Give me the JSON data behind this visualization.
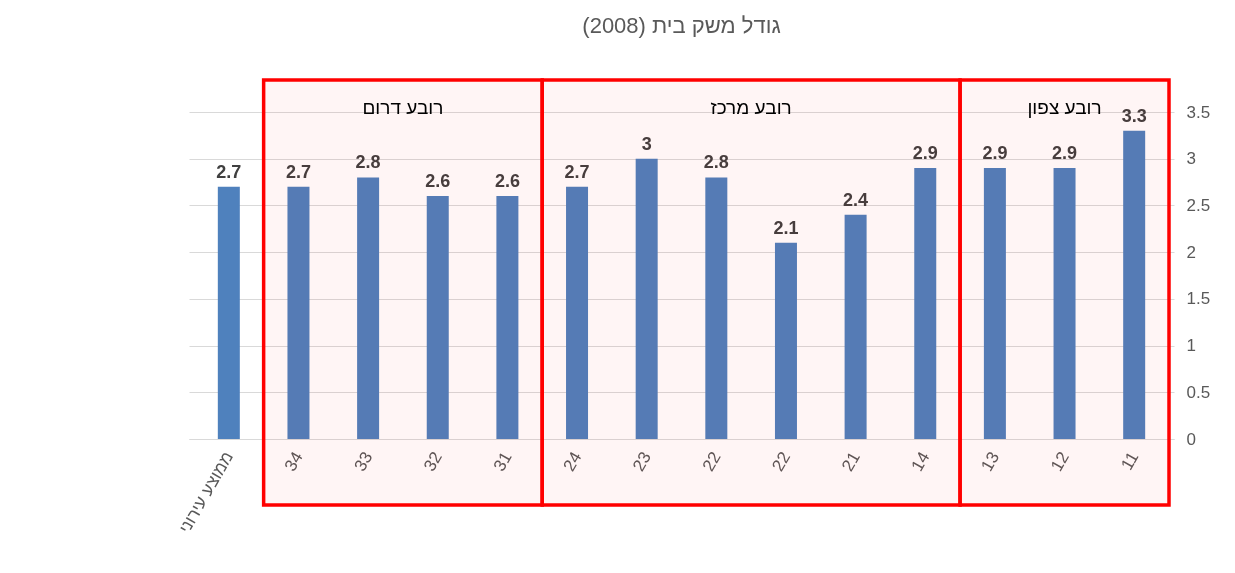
{
  "chart_data": {
    "type": "bar",
    "title": "גודל משק בית (2008)",
    "categories": [
      "ממוצע עירוני",
      "34",
      "33",
      "32",
      "31",
      "24",
      "23",
      "22",
      "22",
      "21",
      "14",
      "13",
      "12",
      "11"
    ],
    "values": [
      2.7,
      2.7,
      2.8,
      2.6,
      2.6,
      2.7,
      3,
      2.8,
      2.1,
      2.4,
      2.9,
      2.9,
      2.9,
      3.3
    ],
    "color": "#4f81bd",
    "ylim": [
      0,
      3.5
    ],
    "yticks": [
      0,
      0.5,
      1,
      1.5,
      2,
      2.5,
      3,
      3.5
    ],
    "grid": "y",
    "data_labels": true,
    "bands": [
      {
        "axis": "x",
        "from": "34",
        "to": "31",
        "label": "רובע דרום",
        "color": "#ff0000"
      },
      {
        "axis": "x",
        "from": "24",
        "to": "14",
        "label": "רובע מרכז",
        "color": "#ff0000"
      },
      {
        "axis": "x",
        "from": "13",
        "to": "11",
        "label": "רובע צפון",
        "color": "#ff0000"
      }
    ]
  }
}
